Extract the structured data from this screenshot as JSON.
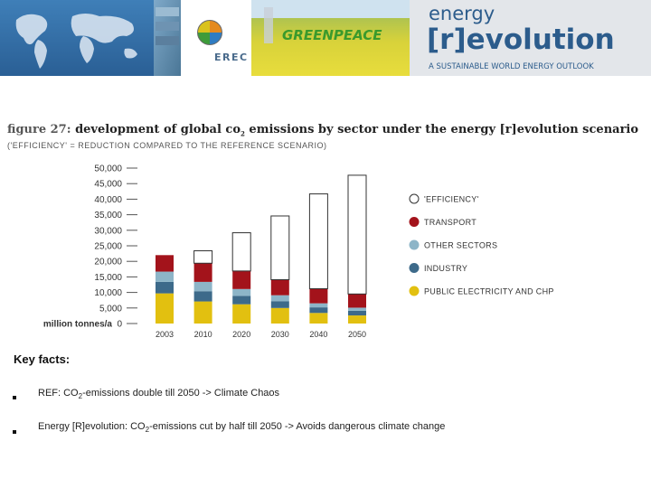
{
  "banner": {
    "logo_erec": "EREC",
    "logo_greenpeace": "GREENPEACE",
    "brand_line1": "energy",
    "brand_line2": "[r]evolution",
    "brand_tagline": "A SUSTAINABLE WORLD ENERGY OUTLOOK"
  },
  "figure": {
    "number": "figure 27:",
    "title_before_sub": "development of global co",
    "title_sub": "2",
    "title_after_sub": " emissions by sector under the energy [r]evolution scenario",
    "subtitle": "('EFFICIENCY' = REDUCTION COMPARED TO THE REFERENCE SCENARIO)"
  },
  "chart_data": {
    "type": "bar",
    "stacked": true,
    "categories": [
      "2003",
      "2010",
      "2020",
      "2030",
      "2040",
      "2050"
    ],
    "y_tick_labels": [
      "50,000",
      "45,000",
      "40,000",
      "35,000",
      "30,000",
      "25,000",
      "20,000",
      "15,000",
      "10,000",
      "5,000",
      "0"
    ],
    "ylabel": "million tonnes/a",
    "ylim": [
      0,
      50000
    ],
    "grid": false,
    "legend_position": "right",
    "series": [
      {
        "name": "PUBLIC ELECTRICITY AND CHP",
        "color": "#e2c010",
        "values": [
          9700,
          7100,
          6200,
          5000,
          3400,
          2600
        ]
      },
      {
        "name": "INDUSTRY",
        "color": "#3d6a8a",
        "values": [
          3700,
          3300,
          2700,
          2200,
          1800,
          1500
        ]
      },
      {
        "name": "OTHER SECTORS",
        "color": "#8db5c8",
        "values": [
          3300,
          3000,
          2200,
          1900,
          1300,
          1000
        ]
      },
      {
        "name": "TRANSPORT",
        "color": "#a3131b",
        "values": [
          5300,
          6000,
          5800,
          5000,
          4700,
          4400
        ]
      },
      {
        "name": "'EFFICIENCY'",
        "color": "#ffffff",
        "stroke": "#333333",
        "values": [
          0,
          4000,
          12300,
          20500,
          30500,
          38200
        ]
      }
    ]
  },
  "key_facts": {
    "heading": "Key facts:",
    "items": [
      {
        "pre": "REF: CO",
        "sub": "2",
        "post": "-emissions double till 2050 -> Climate Chaos"
      },
      {
        "pre": "Energy [R]evolution: CO",
        "sub": "2",
        "post": "-emissions cut by half till 2050 -> Avoids dangerous climate change"
      }
    ]
  }
}
